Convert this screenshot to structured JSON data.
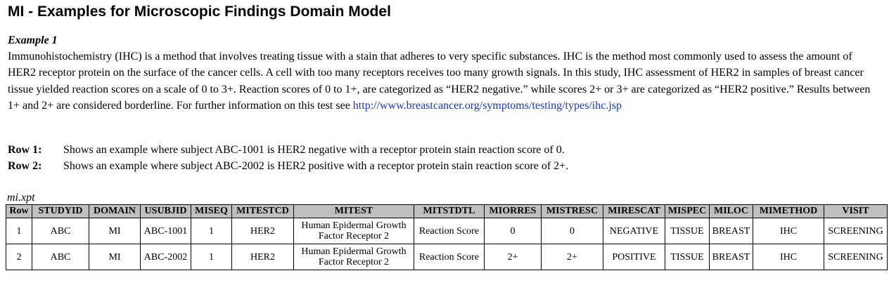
{
  "title": "MI - Examples for Microscopic Findings Domain Model",
  "example": {
    "label": "Example 1",
    "paragraph": "Immunohistochemistry (IHC) is a method that involves treating tissue with a stain that adheres to very specific substances. IHC is the method most commonly used to assess the amount of HER2 receptor protein on the surface of the cancer cells. A cell with too many receptors receives too many growth signals. In this study, IHC assessment of HER2 in samples of breast cancer tissue yielded reaction scores on a scale of 0 to 3+. Reaction scores of 0 to 1+, are categorized as “HER2 negative.” while scores 2+ or 3+ are categorized as “HER2 positive.” Results between 1+ and 2+ are considered borderline. For further information on this test see",
    "link_text": "http://www.breastcancer.org/symptoms/testing/types/ihc.jsp"
  },
  "row_notes": [
    {
      "label": "Row 1:",
      "text": "Shows an example where subject ABC-1001 is HER2 negative with a receptor protein stain reaction score of 0."
    },
    {
      "label": "Row 2:",
      "text": "Shows an example where subject ABC-2002 is HER2 positive with a receptor protein stain reaction score of 2+."
    }
  ],
  "file_label": "mi.xpt",
  "table": {
    "headers": [
      "Row",
      "STUDYID",
      "DOMAIN",
      "USUBJID",
      "MISEQ",
      "MITESTCD",
      "MITEST",
      "MITSTDTL",
      "MIORRES",
      "MISTRESC",
      "MIRESCAT",
      "MISPEC",
      "MILOC",
      "MIMETHOD",
      "VISIT"
    ],
    "rows": [
      [
        "1",
        "ABC",
        "MI",
        "ABC-1001",
        "1",
        "HER2",
        "Human Epidermal Growth Factor Receptor 2",
        "Reaction Score",
        "0",
        "0",
        "NEGATIVE",
        "TISSUE",
        "BREAST",
        "IHC",
        "SCREENING"
      ],
      [
        "2",
        "ABC",
        "MI",
        "ABC-2002",
        "1",
        "HER2",
        "Human Epidermal Growth Factor Receptor 2",
        "Reaction Score",
        "2+",
        "2+",
        "POSITIVE",
        "TISSUE",
        "BREAST",
        "IHC",
        "SCREENING"
      ]
    ]
  }
}
